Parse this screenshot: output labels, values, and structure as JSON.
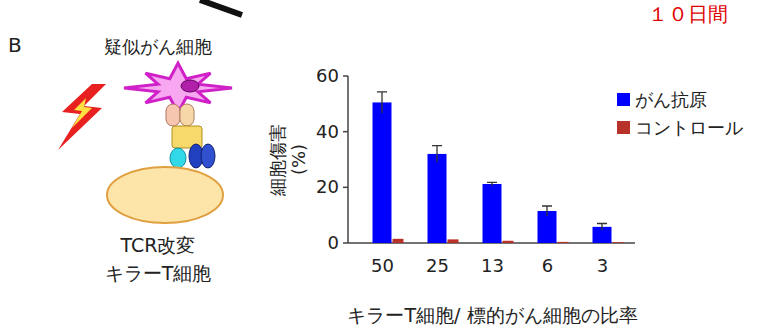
{
  "panel_label": "B",
  "note": "１０日間",
  "diagram": {
    "target_label": "疑似がん細胞",
    "effector_label": [
      "TCR改変",
      "キラーT細胞"
    ]
  },
  "chart_data": {
    "type": "bar",
    "categories": [
      "50",
      "25",
      "13",
      "6",
      "3"
    ],
    "x_label": "キラーT細胞/ 標的がん細胞の比率",
    "y_label": "細胞傷害 (%)",
    "ylim": [
      0,
      60
    ],
    "yticks": [
      0,
      20,
      40,
      60
    ],
    "legend": "upper right",
    "series": [
      {
        "name": "がん抗原",
        "color": "#0000ff",
        "values": [
          50.5,
          32,
          21.2,
          11.5,
          5.8
        ],
        "errors": [
          3.8,
          3,
          0.6,
          1.8,
          1.2
        ]
      },
      {
        "name": "コントロール",
        "color": "#b8322a",
        "values": [
          1.5,
          1.3,
          0.8,
          0.4,
          0.3
        ]
      }
    ]
  }
}
